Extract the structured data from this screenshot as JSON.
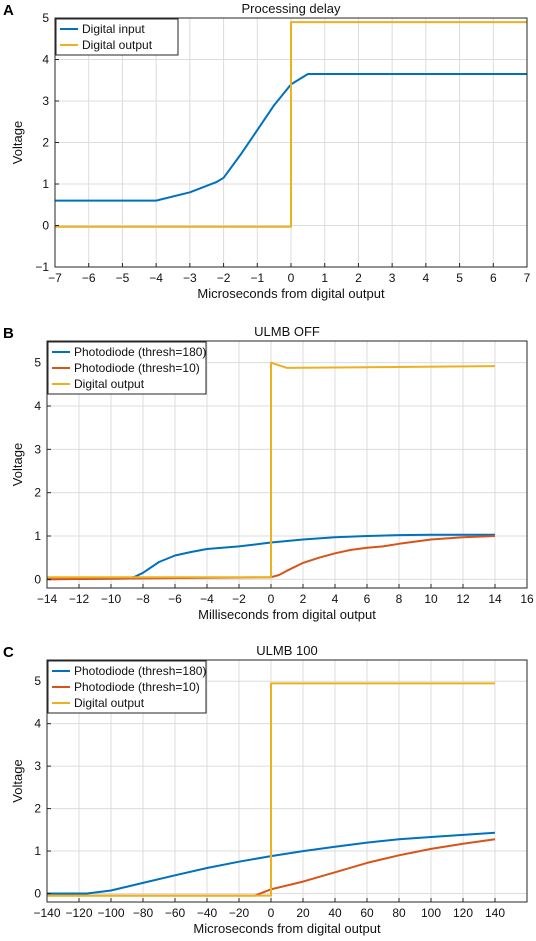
{
  "chart_data": [
    {
      "panel": "A",
      "type": "line",
      "title": "Processing delay",
      "xlabel": "Microseconds from digital output",
      "ylabel": "Voltage",
      "xlim": [
        -7,
        7
      ],
      "ylim": [
        -1,
        5
      ],
      "xticks": [
        -7,
        -6,
        -5,
        -4,
        -3,
        -2,
        -1,
        0,
        1,
        2,
        3,
        4,
        5,
        6,
        7
      ],
      "yticks": [
        -1,
        0,
        1,
        2,
        3,
        4,
        5
      ],
      "grid": true,
      "legend": "top-left",
      "series": [
        {
          "name": "Digital input",
          "color": "#0072BD",
          "x": [
            -7,
            -4,
            -3,
            -2.2,
            -2,
            -1.5,
            -1,
            -0.5,
            0,
            0.5,
            7
          ],
          "y": [
            0.6,
            0.6,
            0.8,
            1.05,
            1.15,
            1.7,
            2.3,
            2.9,
            3.4,
            3.65,
            3.65
          ]
        },
        {
          "name": "Digital output",
          "color": "#EDB120",
          "x": [
            -7,
            0,
            0,
            7
          ],
          "y": [
            -0.03,
            -0.03,
            4.9,
            4.9
          ]
        }
      ]
    },
    {
      "panel": "B",
      "type": "line",
      "title": "ULMB OFF",
      "xlabel": "Milliseconds from digital output",
      "ylabel": "Voltage",
      "xlim": [
        -14,
        16
      ],
      "ylim": [
        -0.2,
        5.5
      ],
      "xticks": [
        -14,
        -12,
        -10,
        -8,
        -6,
        -4,
        -2,
        0,
        2,
        4,
        6,
        8,
        10,
        12,
        14,
        16
      ],
      "yticks": [
        0,
        1,
        2,
        3,
        4,
        5
      ],
      "grid": true,
      "legend": "top-left",
      "series": [
        {
          "name": "Photodiode (thresh=180)",
          "color": "#0072BD",
          "x": [
            -14,
            -9,
            -8.5,
            -8,
            -7,
            -6,
            -5,
            -4,
            -2,
            0,
            2,
            4,
            6,
            8,
            10,
            14
          ],
          "y": [
            0,
            0.02,
            0.06,
            0.15,
            0.4,
            0.55,
            0.63,
            0.7,
            0.76,
            0.85,
            0.92,
            0.97,
            1.0,
            1.02,
            1.03,
            1.03
          ]
        },
        {
          "name": "Photodiode (thresh=10)",
          "color": "#D95319",
          "x": [
            -14,
            0,
            0.5,
            1,
            2,
            3,
            4,
            5,
            6,
            7,
            8,
            10,
            12,
            14
          ],
          "y": [
            0,
            0.05,
            0.1,
            0.2,
            0.38,
            0.5,
            0.6,
            0.68,
            0.73,
            0.76,
            0.82,
            0.92,
            0.97,
            1.0
          ]
        },
        {
          "name": "Digital output",
          "color": "#EDB120",
          "x": [
            -14,
            0,
            0,
            0.4,
            1,
            14
          ],
          "y": [
            0.05,
            0.05,
            5.0,
            4.95,
            4.88,
            4.92
          ]
        }
      ]
    },
    {
      "panel": "C",
      "type": "line",
      "title": "ULMB 100",
      "xlabel": "Microseconds from digital output",
      "ylabel": "Voltage",
      "xlim": [
        -140,
        160
      ],
      "ylim": [
        -0.2,
        5.5
      ],
      "xticks": [
        -140,
        -120,
        -100,
        -80,
        -60,
        -40,
        -20,
        0,
        20,
        40,
        60,
        80,
        100,
        120,
        140
      ],
      "yticks": [
        0,
        1,
        2,
        3,
        4,
        5
      ],
      "grid": true,
      "legend": "top-left",
      "series": [
        {
          "name": "Photodiode (thresh=180)",
          "color": "#0072BD",
          "x": [
            -140,
            -115,
            -100,
            -80,
            -60,
            -40,
            -20,
            0,
            20,
            40,
            60,
            80,
            100,
            120,
            140
          ],
          "y": [
            0,
            0,
            0.07,
            0.25,
            0.43,
            0.6,
            0.75,
            0.88,
            1.0,
            1.1,
            1.2,
            1.28,
            1.33,
            1.38,
            1.43
          ]
        },
        {
          "name": "Photodiode (thresh=10)",
          "color": "#D95319",
          "x": [
            -140,
            -10,
            0,
            20,
            40,
            60,
            80,
            100,
            120,
            140
          ],
          "y": [
            -0.05,
            -0.05,
            0.1,
            0.28,
            0.5,
            0.72,
            0.9,
            1.05,
            1.17,
            1.28
          ]
        },
        {
          "name": "Digital output",
          "color": "#EDB120",
          "x": [
            -140,
            0,
            0,
            140
          ],
          "y": [
            -0.05,
            -0.05,
            4.95,
            4.95
          ]
        }
      ]
    }
  ]
}
